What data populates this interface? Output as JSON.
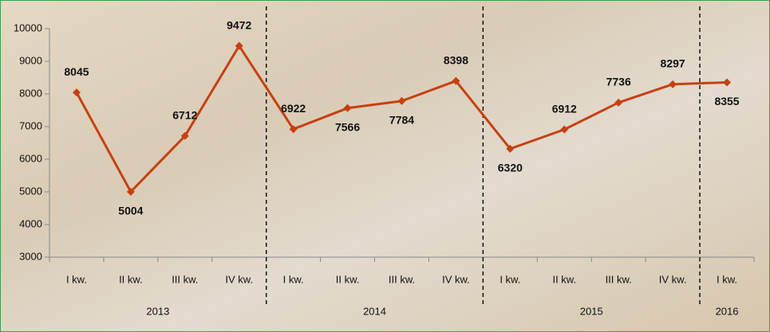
{
  "chart_data": {
    "type": "line",
    "categories": [
      "I kw.",
      "II kw.",
      "III kw.",
      "IV kw.",
      "I kw.",
      "II kw.",
      "III kw.",
      "IV kw.",
      "I kw.",
      "II kw.",
      "III kw.",
      "IV kw.",
      "I kw."
    ],
    "groups": [
      "2013",
      "2014",
      "2015",
      "2016"
    ],
    "values": [
      8045,
      5004,
      6712,
      9472,
      6922,
      7566,
      7784,
      8398,
      6320,
      6912,
      7736,
      8297,
      8355
    ],
    "color": "#c8400e",
    "ylim": [
      3000,
      10000
    ],
    "yticks": [
      3000,
      4000,
      5000,
      6000,
      7000,
      8000,
      9000,
      10000
    ]
  }
}
